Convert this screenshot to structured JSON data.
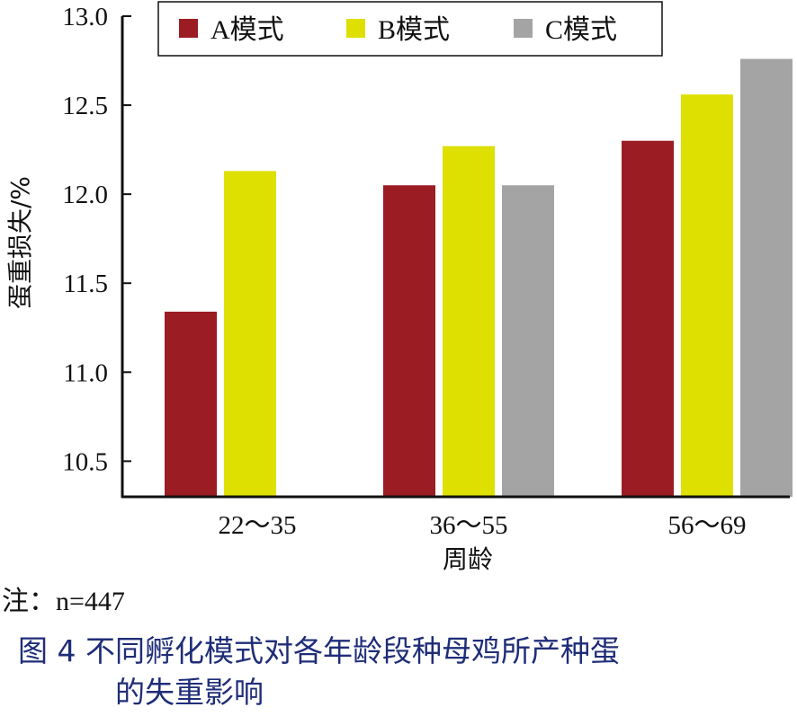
{
  "chart_data": {
    "type": "bar",
    "categories": [
      "22～35",
      "36～55",
      "56～69"
    ],
    "series": [
      {
        "name": "A模式",
        "values": [
          11.34,
          12.05,
          12.3
        ],
        "color": "#9b1c23"
      },
      {
        "name": "B模式",
        "values": [
          12.13,
          12.27,
          12.56
        ],
        "color": "#dde000"
      },
      {
        "name": "C模式",
        "values": [
          null,
          12.05,
          12.76
        ],
        "color": "#a4a4a4"
      }
    ],
    "xlabel": "周龄",
    "ylabel": "蛋重损失/%",
    "ylim": [
      10.3,
      13.0
    ],
    "yticks": [
      "10.5",
      "11.0",
      "11.5",
      "12.0",
      "12.5",
      "13.0"
    ],
    "legend_position": "top"
  },
  "note": "注：n=447",
  "caption": {
    "line1": "图 4  不同孵化模式对各年龄段种母鸡所产种蛋",
    "line2": "的失重影响"
  }
}
